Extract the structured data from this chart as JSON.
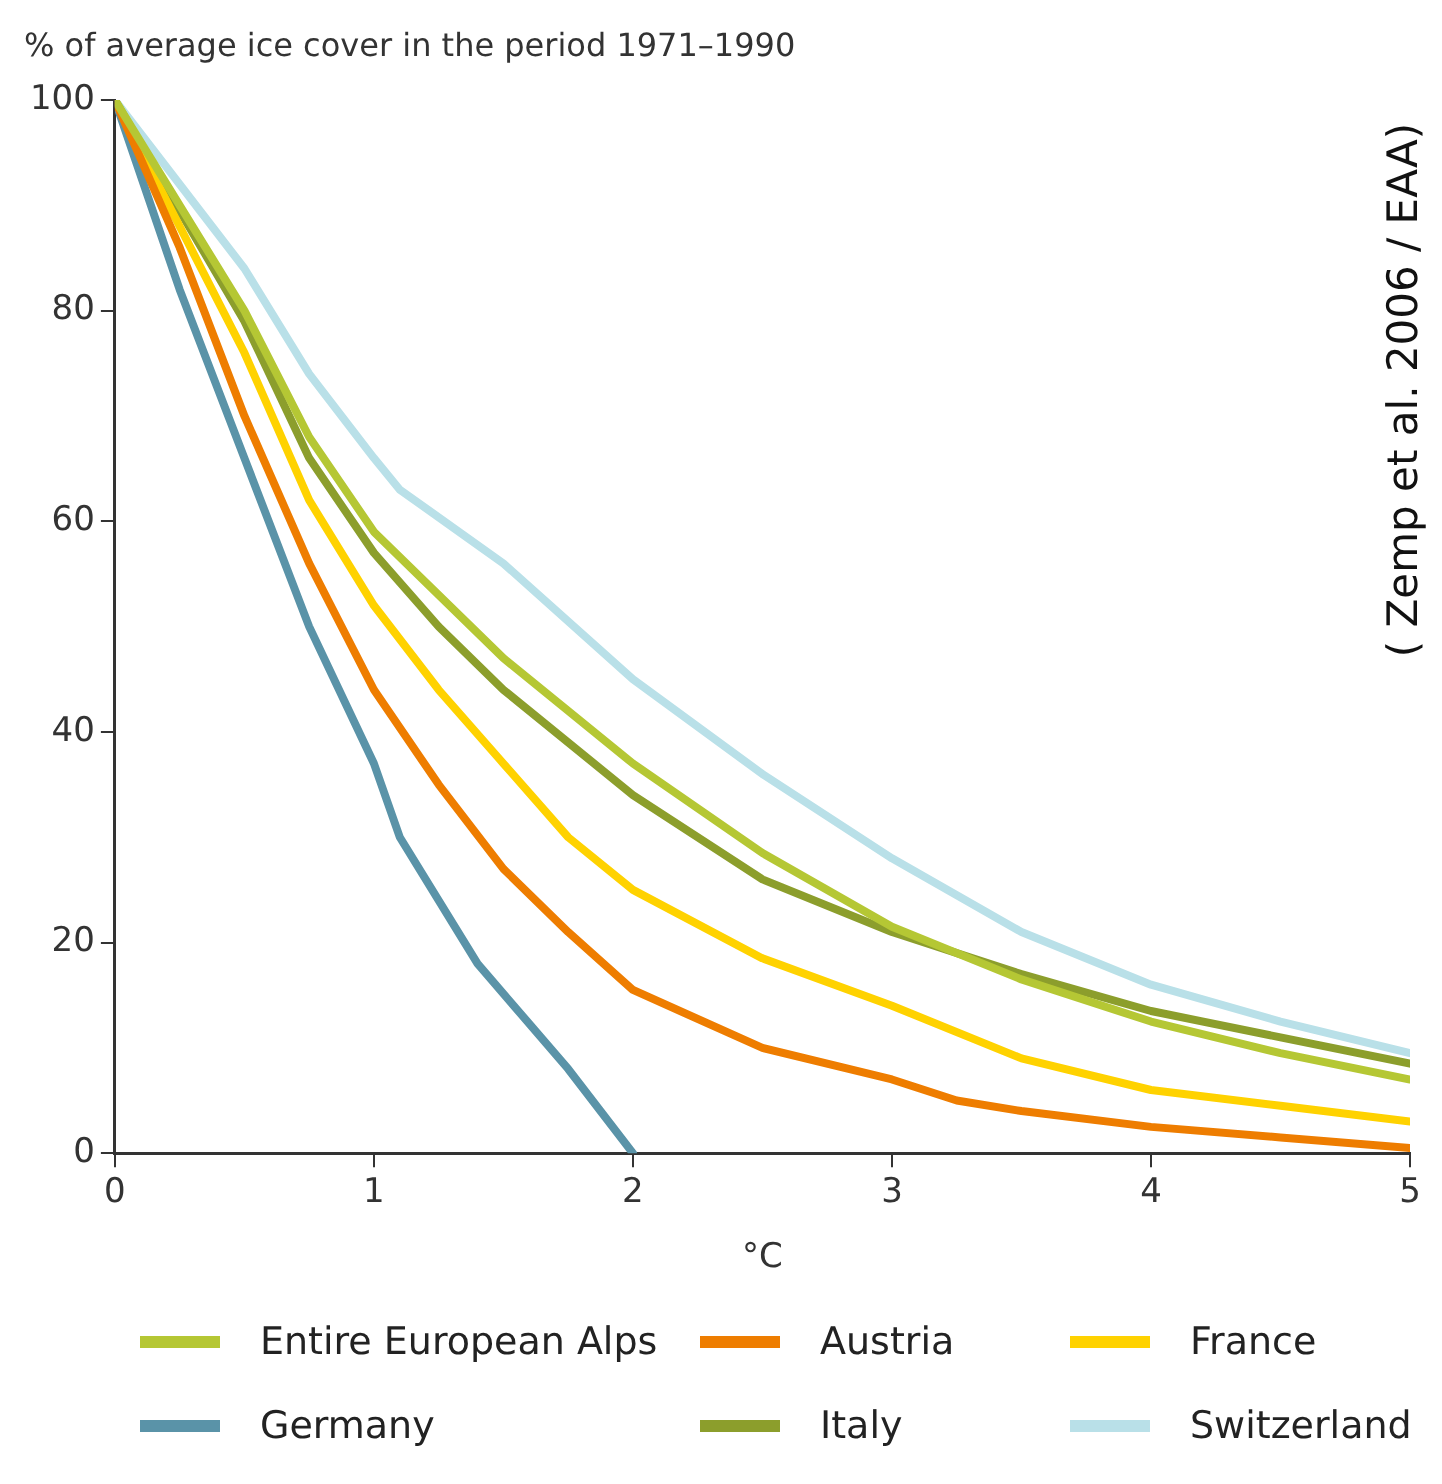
{
  "chart_data": {
    "type": "line",
    "ylabel": "% of average ice cover in the period 1971–1990",
    "xlabel": "°C",
    "annotations": [
      "( Zemp et al. 2006 / EAA)"
    ],
    "xlim": [
      0,
      5
    ],
    "xticks": [
      0,
      1,
      2,
      3,
      4,
      5
    ],
    "ylim": [
      0,
      100
    ],
    "yticks": [
      0,
      20,
      40,
      60,
      80,
      100
    ],
    "grid": false,
    "legend": "bottom",
    "marker": "none",
    "line_style": "solid",
    "series": [
      {
        "name": "Entire European Alps",
        "color": "#b5c734",
        "x": [
          0,
          0.5,
          0.75,
          1,
          1.5,
          2,
          2.5,
          3,
          3.5,
          4,
          4.5,
          5
        ],
        "values": [
          100,
          80,
          68,
          59,
          47,
          37,
          28.5,
          21.5,
          16.5,
          12.5,
          9.5,
          7
        ]
      },
      {
        "name": "Austria",
        "color": "#ee7d00",
        "x": [
          0,
          0.25,
          0.5,
          0.75,
          1,
          1.25,
          1.5,
          1.75,
          2,
          2.5,
          3,
          3.25,
          3.5,
          4,
          4.5,
          5
        ],
        "values": [
          100,
          86,
          70,
          56,
          44,
          35,
          27,
          21,
          15.5,
          10,
          7,
          5,
          4,
          2.5,
          1.5,
          0.5
        ]
      },
      {
        "name": "France",
        "color": "#ffd200",
        "x": [
          0,
          0.5,
          0.75,
          1,
          1.25,
          1.5,
          1.75,
          2,
          2.5,
          3,
          3.5,
          4,
          4.5,
          5
        ],
        "values": [
          100,
          76,
          62,
          52,
          44,
          37,
          30,
          25,
          18.5,
          14,
          9,
          6,
          4.5,
          3
        ]
      },
      {
        "name": "Germany",
        "color": "#5a93a8",
        "x": [
          0,
          0.25,
          0.5,
          0.75,
          1,
          1.1,
          1.4,
          1.75,
          2
        ],
        "values": [
          100,
          82,
          66,
          50,
          37,
          30,
          18,
          8,
          0
        ]
      },
      {
        "name": "Italy",
        "color": "#8c9e2c",
        "x": [
          0,
          0.5,
          0.75,
          1,
          1.25,
          1.5,
          2,
          2.5,
          3,
          3.5,
          4,
          4.5,
          5
        ],
        "values": [
          100,
          79,
          66,
          57,
          50,
          44,
          34,
          26,
          21,
          17,
          13.5,
          11,
          8.5
        ]
      },
      {
        "name": "Switzerland",
        "color": "#b9e0e8",
        "x": [
          0,
          0.5,
          0.75,
          1,
          1.1,
          1.5,
          2,
          2.5,
          3,
          3.5,
          4,
          4.5,
          5
        ],
        "values": [
          100,
          84,
          74,
          66,
          63,
          56,
          45,
          36,
          28,
          21,
          16,
          12.5,
          9.5
        ]
      }
    ]
  }
}
